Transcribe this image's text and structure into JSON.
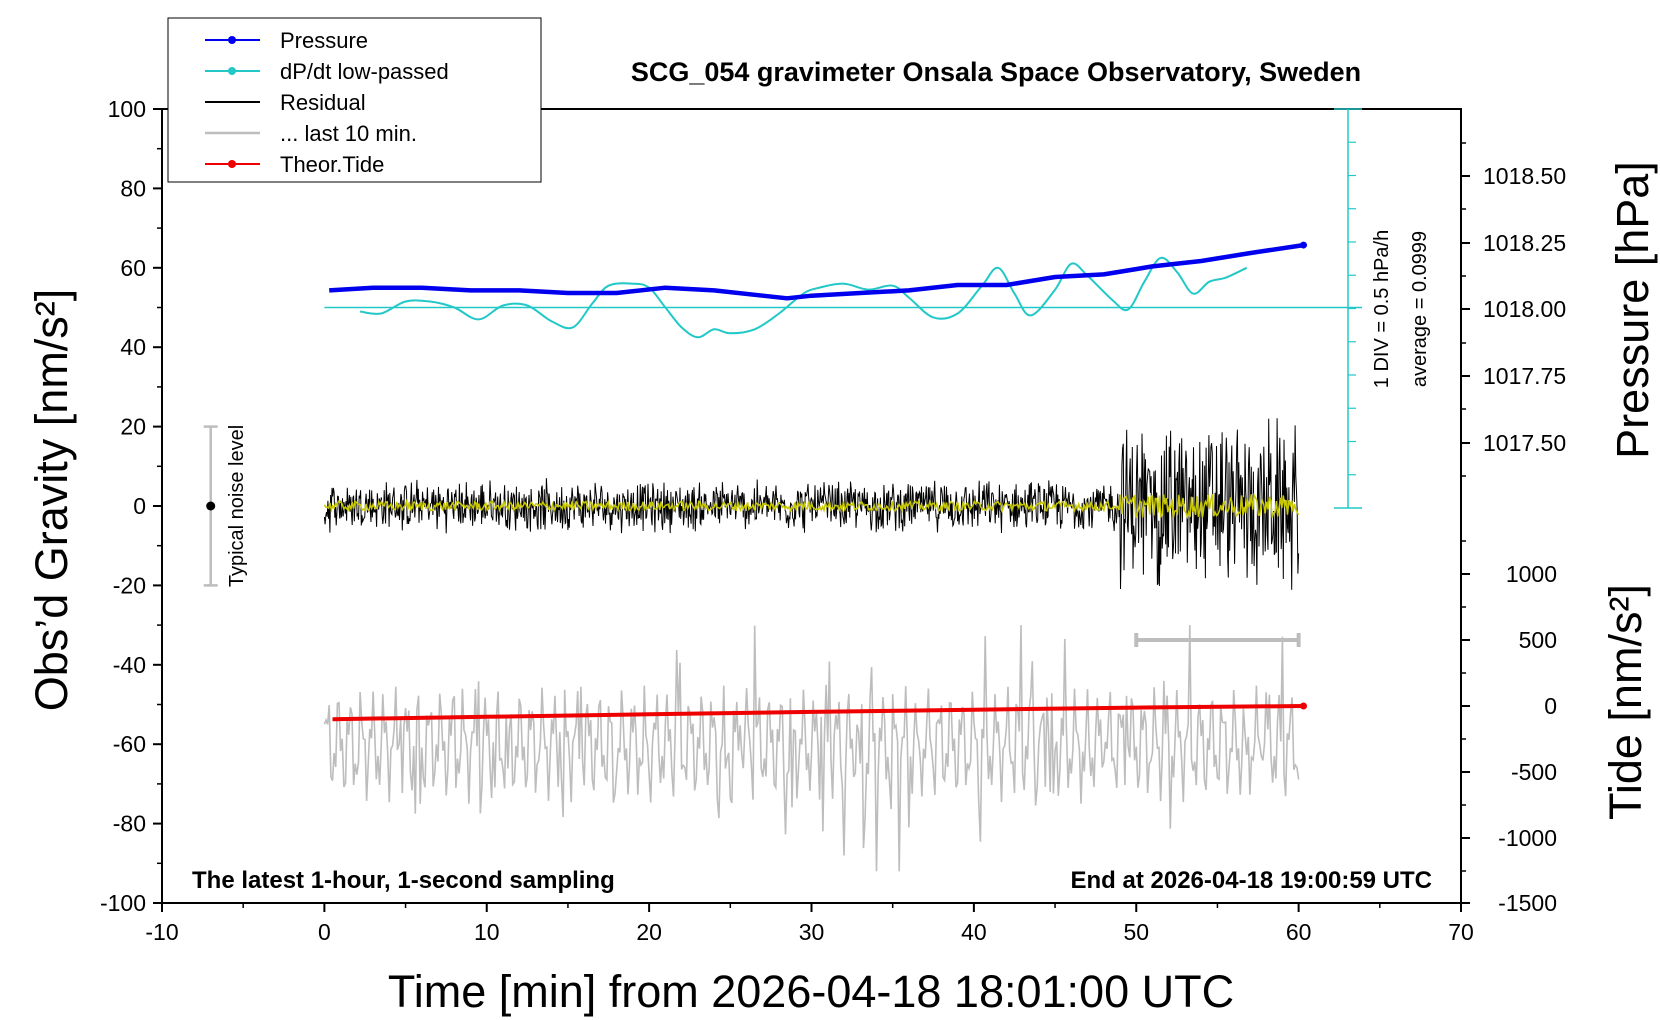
{
  "chart_data": {
    "type": "line",
    "title": "SCG_054 gravimeter Onsala Space Observatory, Sweden",
    "xlabel": "Time [min] from 2026-04-18 18:01:00 UTC",
    "ylabel": "Obs’d Gravity [nm/s²]",
    "xlim": [
      -10,
      70
    ],
    "ylim": [
      -100,
      100
    ],
    "x_ticks": [
      -10,
      0,
      10,
      20,
      30,
      40,
      50,
      60,
      70
    ],
    "y_ticks": [
      100,
      80,
      60,
      40,
      20,
      0,
      -20,
      -40,
      -60,
      -80,
      -100
    ],
    "grid": false,
    "legend_position": "top-left",
    "legend": [
      {
        "label": "Pressure",
        "color": "#0000ee"
      },
      {
        "label": "dP/dt low-passed",
        "color": "#22c8c8"
      },
      {
        "label": "Residual",
        "color": "#000000"
      },
      {
        "label": "... last 10 min.",
        "color": "#bdbdbd"
      },
      {
        "label": "Theor.Tide",
        "color": "#ee0000"
      }
    ],
    "pressure_axis": {
      "label": "Pressure [hPa]",
      "ticks": [
        "1018.50",
        "1018.25",
        "1018.00",
        "1017.75",
        "1017.50"
      ]
    },
    "tide_axis": {
      "label": "Tide [nm/s²]",
      "ticks": [
        "1000",
        "500",
        "0",
        "-500",
        "-1000",
        "-1500"
      ]
    },
    "series": [
      {
        "name": "Pressure",
        "unit": "hPa",
        "x": [
          0.3,
          3,
          6,
          9,
          12,
          15,
          18,
          21,
          24,
          27,
          28.5,
          30,
          33,
          36,
          39,
          42,
          45,
          48,
          51,
          54,
          57,
          60.3
        ],
        "y": [
          1018.07,
          1018.08,
          1018.08,
          1018.07,
          1018.07,
          1018.06,
          1018.06,
          1018.08,
          1018.07,
          1018.05,
          1018.04,
          1018.05,
          1018.06,
          1018.07,
          1018.09,
          1018.09,
          1018.12,
          1018.13,
          1018.16,
          1018.18,
          1018.21,
          1018.24
        ]
      },
      {
        "name": "dP/dt low-passed",
        "unit": "nm/s² (plot scale)",
        "x": [
          2.2,
          3.5,
          5,
          6.5,
          8,
          9.5,
          11,
          12.5,
          14,
          15.3,
          16.5,
          17.5,
          19,
          20,
          21,
          22,
          23,
          24,
          25,
          26.5,
          28,
          29.5,
          30.5,
          32,
          33.5,
          35,
          36,
          37.5,
          39,
          40.5,
          41.5,
          42.5,
          43.5,
          45,
          46,
          47,
          48.5,
          49.5,
          50.5,
          51.5,
          52.5,
          53.5,
          54.5,
          55.5,
          56.8
        ],
        "y": [
          49,
          48.5,
          51.5,
          51.5,
          50,
          47,
          50.5,
          50.5,
          46.5,
          45,
          51,
          55.5,
          56,
          55,
          50,
          45,
          42.5,
          44.5,
          43.5,
          44.5,
          48.5,
          53.5,
          55,
          56,
          54.5,
          55.5,
          52.5,
          47.5,
          48.5,
          55.5,
          60,
          53.5,
          48,
          54.5,
          61,
          58,
          52,
          49.5,
          56.5,
          62.5,
          59,
          53.5,
          56.5,
          57.5,
          60
        ]
      },
      {
        "name": "Residual",
        "unit": "nm/s²",
        "x_range": [
          0,
          60
        ],
        "amplitude_before_49": 6,
        "amplitude_after_49": 20
      },
      {
        "name": "... last 10 min.",
        "unit": "nm/s² (zoomed)",
        "x_range": [
          0,
          60
        ]
      },
      {
        "name": "Theor.Tide",
        "unit": "nm/s²",
        "x": [
          0.5,
          10,
          20,
          30,
          40,
          50,
          60.3
        ],
        "y": [
          -100,
          -82,
          -63,
          -45,
          -28,
          -12,
          0
        ]
      }
    ],
    "annotations": {
      "noise_label": "Typical noise level",
      "pressure_scale": "1 DIV = 0.5 hPa/h",
      "average": "average = 0.0999",
      "left_footer": "The latest 1-hour, 1-second sampling",
      "right_footer": "End at 2026-04-18 19:00:59 UTC"
    }
  }
}
